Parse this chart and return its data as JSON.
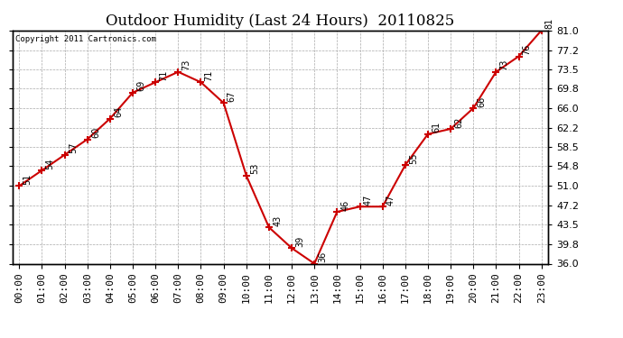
{
  "title": "Outdoor Humidity (Last 24 Hours)  20110825",
  "copyright": "Copyright 2011 Cartronics.com",
  "x_labels": [
    "00:00",
    "01:00",
    "02:00",
    "03:00",
    "04:00",
    "05:00",
    "06:00",
    "07:00",
    "08:00",
    "09:00",
    "10:00",
    "11:00",
    "12:00",
    "13:00",
    "14:00",
    "15:00",
    "16:00",
    "17:00",
    "18:00",
    "19:00",
    "20:00",
    "21:00",
    "22:00",
    "23:00"
  ],
  "hours": [
    0,
    1,
    2,
    3,
    4,
    5,
    6,
    7,
    8,
    9,
    10,
    11,
    12,
    13,
    14,
    15,
    16,
    17,
    18,
    19,
    20,
    21,
    22,
    23
  ],
  "humidity": [
    51,
    54,
    57,
    60,
    64,
    69,
    71,
    73,
    71,
    67,
    53,
    43,
    39,
    36,
    46,
    47,
    47,
    55,
    61,
    62,
    66,
    73,
    76,
    81
  ],
  "labels": [
    "51",
    "54",
    "57",
    "60",
    "64",
    "69",
    "71",
    "73",
    "71",
    "67",
    "53",
    "43",
    "39",
    "36",
    "46",
    "47",
    "47",
    "55",
    "61",
    "62",
    "66",
    "73",
    "76",
    "81"
  ],
  "ylim_min": 36.0,
  "ylim_max": 81.0,
  "yticks": [
    36.0,
    39.8,
    43.5,
    47.2,
    51.0,
    54.8,
    58.5,
    62.2,
    66.0,
    69.8,
    73.5,
    77.2,
    81.0
  ],
  "ytick_labels": [
    "36.0",
    "39.8",
    "43.5",
    "47.2",
    "51.0",
    "54.8",
    "58.5",
    "62.2",
    "66.0",
    "69.8",
    "73.5",
    "77.2",
    "81.0"
  ],
  "line_color": "#cc0000",
  "marker_color": "#cc0000",
  "bg_color": "#ffffff",
  "plot_bg_color": "#ffffff",
  "grid_color": "#aaaaaa",
  "title_fontsize": 12,
  "tick_fontsize": 8,
  "label_fontsize": 7,
  "copyright_fontsize": 6.5
}
